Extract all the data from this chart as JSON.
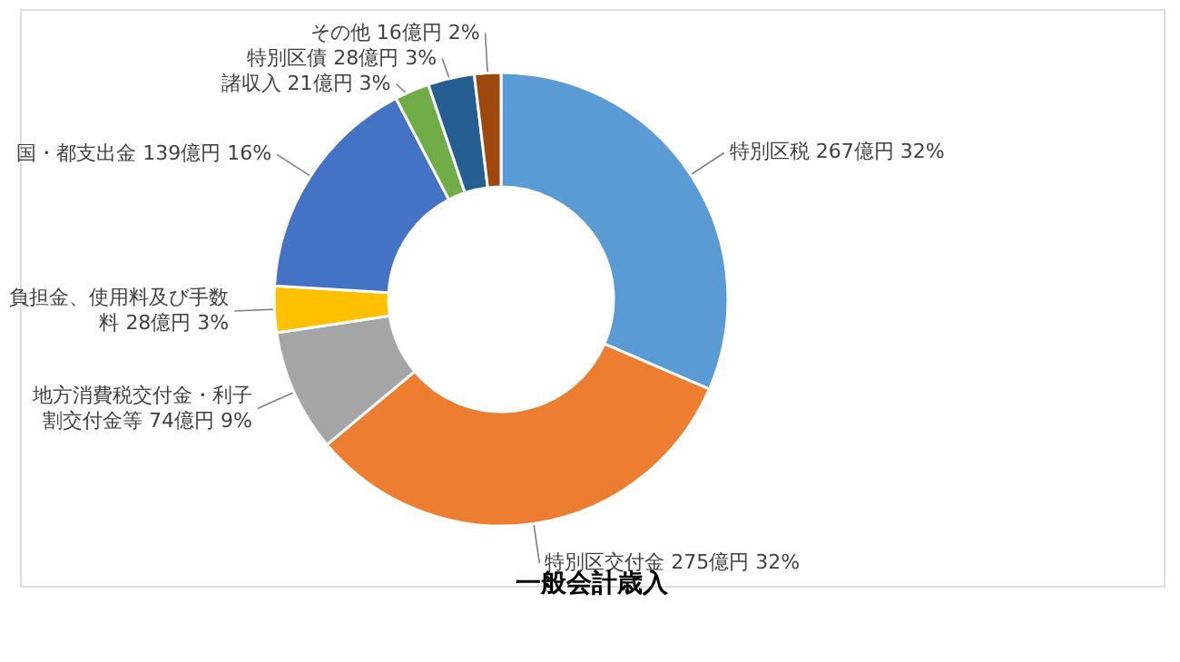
{
  "chart_data": {
    "type": "donut",
    "title": "一般会計歳入",
    "categories": [
      "特別区税",
      "特別区交付金",
      "地方消費税交付金・利子割交付金等",
      "負担金、使用料及び手数料",
      "国・都支出金",
      "諸収入",
      "特別区債",
      "その他"
    ],
    "values": [
      267,
      275,
      74,
      28,
      139,
      21,
      28,
      16
    ],
    "value_labels": [
      "267億円 32%",
      "275億円 32%",
      "74億円 9%",
      "28億円 3%",
      "139億円 16%",
      "21億円 3%",
      "28億円 3%",
      "16億円 2%"
    ],
    "colors": [
      "#5b9bd5",
      "#ed7d31",
      "#a5a5a5",
      "#ffc000",
      "#4472c4",
      "#70ad47",
      "#255e91",
      "#9e480e"
    ],
    "legend": false
  }
}
